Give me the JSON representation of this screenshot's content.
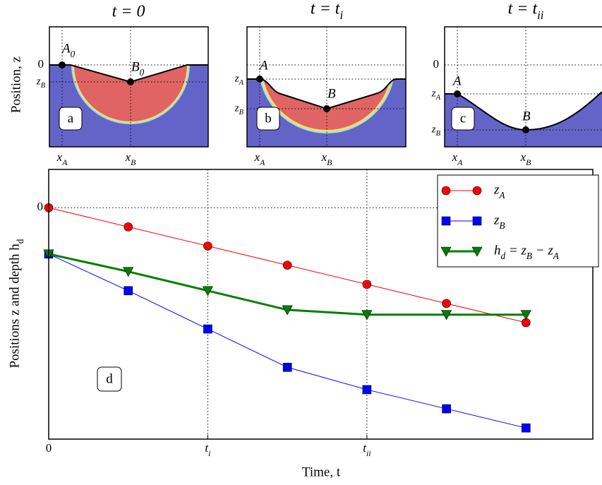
{
  "panels": [
    {
      "title": "t = 0",
      "ylabel": "Position, z",
      "zero": "0",
      "zA": null,
      "zB": "zB",
      "pointA": "A0",
      "pointB": "B0",
      "letter": "a",
      "xA": "xA",
      "xB": "xB"
    },
    {
      "title": "t = ti",
      "zA": "zA",
      "zB": "zB",
      "pointA": "A",
      "pointB": "B",
      "letter": "b",
      "xA": "xA",
      "xB": "xB"
    },
    {
      "title": "t = tii",
      "zero": "0",
      "zA": "zA",
      "zB": "zB",
      "pointA": "A",
      "pointB": "B",
      "letter": "c",
      "xA": "xA",
      "xB": "xB"
    }
  ],
  "chart_data": {
    "type": "line",
    "xlabel": "Time, t",
    "ylabel": "Positions z and depth hd",
    "annotation": "d",
    "x": [
      0,
      0.5,
      1,
      1.5,
      2,
      2.5,
      3
    ],
    "series": [
      {
        "name": "zA",
        "color": "#ff0000",
        "marker": "circle",
        "width": 1,
        "values": [
          0,
          -0.12,
          -0.24,
          -0.36,
          -0.48,
          -0.6,
          -0.72
        ]
      },
      {
        "name": "zB",
        "color": "#0000ff",
        "marker": "square",
        "width": 1,
        "values": [
          -0.29,
          -0.52,
          -0.76,
          -1.0,
          -1.14,
          -1.26,
          -1.38
        ]
      },
      {
        "name": "hd = zB − zA",
        "color": "#008000",
        "marker": "triangle",
        "width": 3,
        "values": [
          -0.29,
          -0.4,
          -0.52,
          -0.64,
          -0.67,
          -0.67,
          -0.67
        ]
      }
    ],
    "xlim": [
      0,
      3.42
    ],
    "ylim": [
      -1.45,
      0.24
    ],
    "xticks": [
      0,
      {
        "value": 1,
        "label": "ti"
      },
      {
        "value": 2,
        "label": "tii"
      }
    ],
    "yticks": [
      0
    ],
    "grid": true,
    "legend": "upper right"
  }
}
